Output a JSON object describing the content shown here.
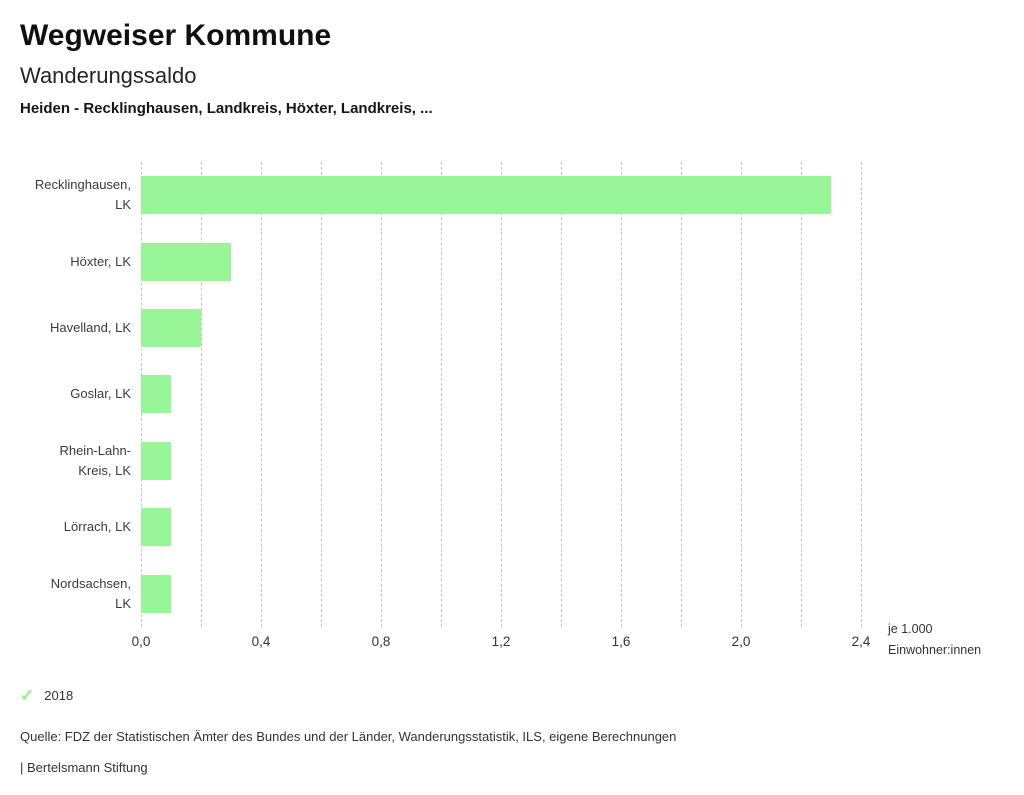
{
  "header": {
    "title": "Wegweiser Kommune",
    "subtitle": "Wanderungssaldo",
    "comparison": "Heiden - Recklinghausen, Landkreis, Höxter, Landkreis, ..."
  },
  "chart_data": {
    "type": "bar",
    "orientation": "horizontal",
    "title": "Wanderungssaldo",
    "categories": [
      "Recklinghausen, LK",
      "Höxter, LK",
      "Havelland, LK",
      "Goslar, LK",
      "Rhein-Lahn-Kreis, LK",
      "Lörrach, LK",
      "Nordsachsen, LK"
    ],
    "series": [
      {
        "name": "2018",
        "values": [
          2.3,
          0.3,
          0.2,
          0.1,
          0.1,
          0.1,
          0.1
        ]
      }
    ],
    "xlabel": "je 1.000 Einwohner:innen",
    "unit_label_line1": "je 1.000",
    "unit_label_line2": "Einwohner:innen",
    "xlim": [
      0,
      2.4
    ],
    "grid_step": 0.2,
    "grid": true,
    "x_ticks": [
      0,
      0.4,
      0.8,
      1.2,
      1.6,
      2.0,
      2.4
    ],
    "x_tick_labels": [
      "0,0",
      "0,4",
      "0,8",
      "1,2",
      "1,6",
      "2,0",
      "2,4"
    ],
    "legend_position": "bottom-left",
    "bar_color": "#98f698"
  },
  "legend": {
    "check_icon": "✓",
    "year": "2018"
  },
  "footer": {
    "source": "Quelle: FDZ der Statistischen Ämter des Bundes und der Länder, Wanderungsstatistik, ILS, eigene Berechnungen",
    "attribution": "| Bertelsmann Stiftung"
  },
  "colors": {
    "bar": "#98f698",
    "check": "#8fef8f",
    "grid": "#c5c5c5",
    "text": "#3a3a3a"
  }
}
